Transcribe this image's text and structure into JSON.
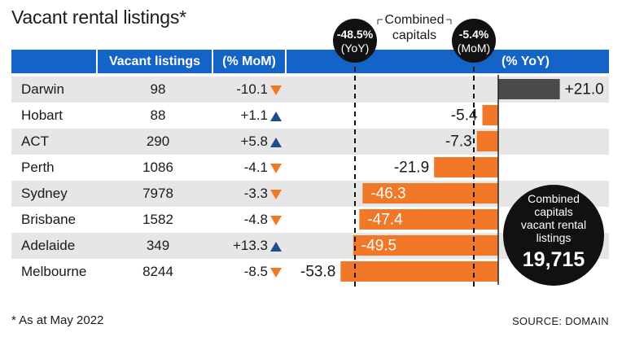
{
  "title": "Vacant rental listings*",
  "headers": {
    "listings": "Vacant listings",
    "mom": "(% MoM)",
    "yoy": "(% YoY)"
  },
  "footnote": "* As at May 2022",
  "source": "SOURCE: DOMAIN",
  "callouts": {
    "combined_label": "Combined capitals",
    "yoy_value": "-48.5%",
    "yoy_unit": "(YoY)",
    "mom_value": "-5.4%",
    "mom_unit": "(MoM)"
  },
  "circle": {
    "label": "Combined capitals vacant rental listings",
    "label_lines": [
      "Combined",
      "capitals",
      "vacant rental",
      "listings"
    ],
    "value": "19,715"
  },
  "rows": [
    {
      "city": "Darwin",
      "listings": "98",
      "mom": "-10.1",
      "mom_dir": "down"
    },
    {
      "city": "Hobart",
      "listings": "88",
      "mom": "+1.1",
      "mom_dir": "up"
    },
    {
      "city": "ACT",
      "listings": "290",
      "mom": "+5.8",
      "mom_dir": "up"
    },
    {
      "city": "Perth",
      "listings": "1086",
      "mom": "-4.1",
      "mom_dir": "down"
    },
    {
      "city": "Sydney",
      "listings": "7978",
      "mom": "-3.3",
      "mom_dir": "down"
    },
    {
      "city": "Brisbane",
      "listings": "1582",
      "mom": "-4.8",
      "mom_dir": "down"
    },
    {
      "city": "Adelaide",
      "listings": "349",
      "mom": "+13.3",
      "mom_dir": "up"
    },
    {
      "city": "Melbourne",
      "listings": "8244",
      "mom": "-8.5",
      "mom_dir": "down"
    }
  ],
  "colors": {
    "header_blue": "#1464c8",
    "row_shade": "#e6e6e6",
    "negative_bar": "#f07828",
    "positive_bar": "#4a4a4a",
    "up_arrow": "#1e4d8c",
    "down_arrow": "#f07828",
    "circle": "#111111"
  },
  "chart_data": {
    "type": "bar",
    "orientation": "horizontal",
    "title": "(% YoY)",
    "categories": [
      "Darwin",
      "Hobart",
      "ACT",
      "Perth",
      "Sydney",
      "Brisbane",
      "Adelaide",
      "Melbourne"
    ],
    "values": [
      21.0,
      -5.4,
      -7.3,
      -21.9,
      -46.3,
      -47.4,
      -49.5,
      -53.8
    ],
    "value_labels": [
      "+21.0",
      "-5.4",
      "-7.3",
      "-21.9",
      "-46.3",
      "-47.4",
      "-49.5",
      "-53.8"
    ],
    "reference_lines": [
      {
        "label": "-48.5% (YoY)",
        "value": -48.5
      },
      {
        "label": "-5.4% (MoM)",
        "value": -5.4
      }
    ],
    "xlim": [
      -60,
      35
    ]
  }
}
